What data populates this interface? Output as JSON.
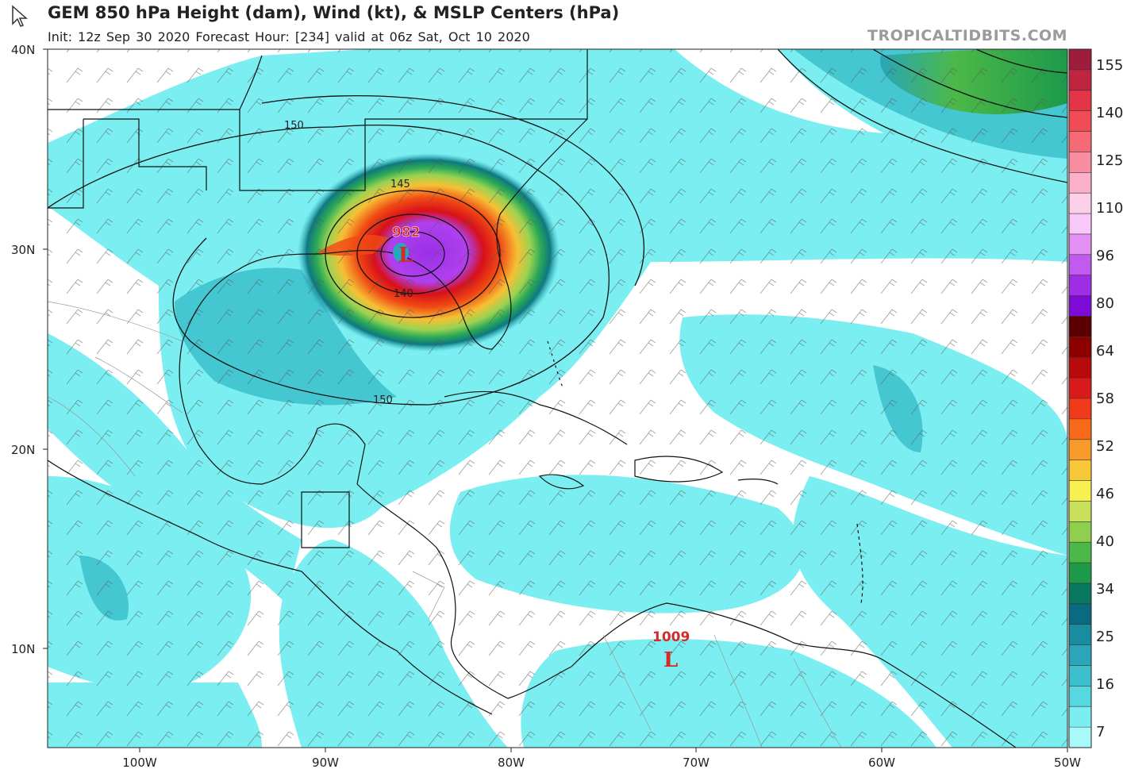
{
  "header": {
    "title": "GEM 850 hPa Height (dam), Wind (kt), & MSLP Centers (hPa)",
    "subtitle": "Init: 12z Sep 30 2020   Forecast Hour: [234]   valid at 06z Sat, Oct 10 2020",
    "brand": "TROPICALTIDBITS.COM"
  },
  "axes": {
    "lat_labels": [
      "40N",
      "30N",
      "20N",
      "10N"
    ],
    "lon_labels": [
      "100W",
      "90W",
      "80W",
      "70W",
      "60W",
      "50W"
    ]
  },
  "colorbar": {
    "labels": [
      "155",
      "140",
      "125",
      "110",
      "96",
      "80",
      "64",
      "58",
      "52",
      "46",
      "40",
      "34",
      "25",
      "16",
      "7"
    ],
    "colors": [
      "#9e1c3c",
      "#c02540",
      "#e23545",
      "#f04c55",
      "#f56a75",
      "#f88da0",
      "#fab0c8",
      "#fbd0e8",
      "#f7c8f8",
      "#e590f5",
      "#c35af0",
      "#a02de6",
      "#7e0ad8",
      "#5a0000",
      "#8c0000",
      "#b80a0a",
      "#d91a1a",
      "#f03a1a",
      "#f86a1a",
      "#f89b2a",
      "#f8c838",
      "#f6f050",
      "#c8e05a",
      "#8ed04e",
      "#4cb848",
      "#1c9a4a",
      "#087860",
      "#0a6a80",
      "#1a8ca0",
      "#2aa6b8",
      "#3cc0cc",
      "#56d8e0",
      "#7aeef0",
      "#a8fafa"
    ]
  },
  "map_labels": {
    "contour_labels": [
      "150",
      "145",
      "140",
      "150"
    ],
    "lows": [
      {
        "pressure": "982",
        "symbol": "L"
      },
      {
        "pressure": "1009",
        "symbol": "L"
      }
    ]
  }
}
